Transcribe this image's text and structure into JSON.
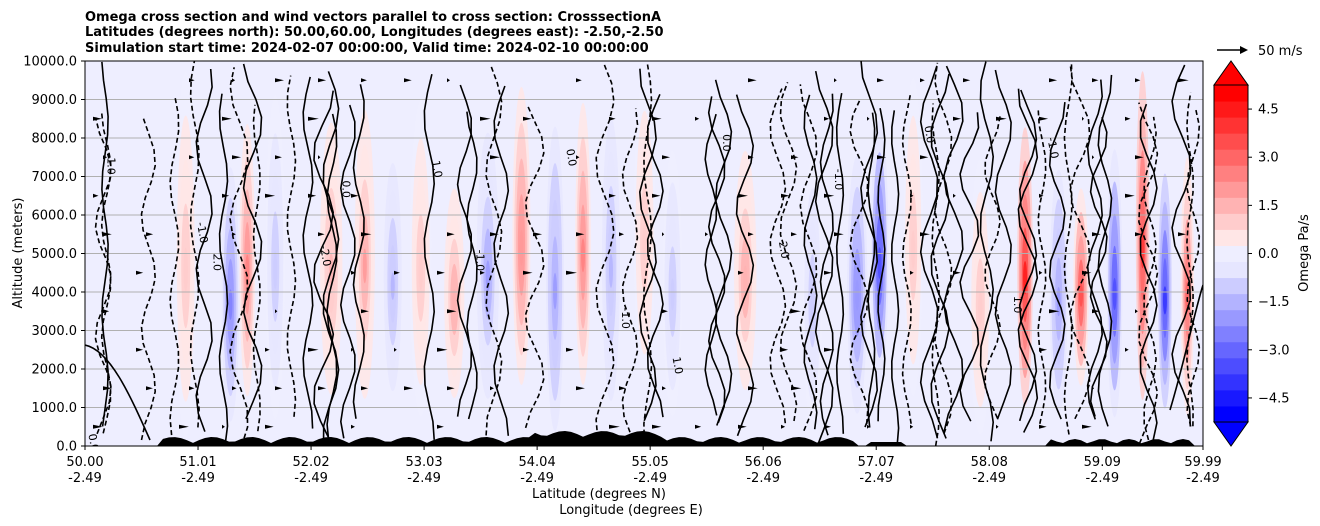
{
  "chart_data": {
    "type": "heatmap",
    "title_lines": [
      "Omega cross section and wind vectors parallel to cross section: CrosssectionA",
      "Latitudes (degrees north): 50.00,60.00, Longitudes (degrees east): -2.50,-2.50",
      "Simulation start time: 2024-02-07 00:00:00, Valid time: 2024-02-10 00:00:00"
    ],
    "xlabel_lat": "Latitude (degrees N)",
    "xlabel_lon": "Longitude (degrees E)",
    "ylabel": "Altitude (meters)",
    "ylim": [
      0,
      10000
    ],
    "xlim": [
      50.0,
      59.99
    ],
    "y_ticks": [
      "0.0",
      "1000.0",
      "2000.0",
      "3000.0",
      "4000.0",
      "5000.0",
      "6000.0",
      "7000.0",
      "8000.0",
      "9000.0",
      "10000.0"
    ],
    "y_tick_values": [
      0,
      1000,
      2000,
      3000,
      4000,
      5000,
      6000,
      7000,
      8000,
      9000,
      10000
    ],
    "x_ticks_lat": [
      "50.00",
      "51.01",
      "52.02",
      "53.03",
      "54.04",
      "55.05",
      "56.06",
      "57.07",
      "58.08",
      "59.09",
      "59.99"
    ],
    "x_tick_values": [
      50.0,
      51.01,
      52.02,
      53.03,
      54.04,
      55.05,
      56.06,
      57.07,
      58.08,
      59.09,
      59.99
    ],
    "x_ticks_lon": [
      "-2.49",
      "-2.49",
      "-2.49",
      "-2.49",
      "-2.49",
      "-2.49",
      "-2.49",
      "-2.49",
      "-2.49",
      "-2.49",
      "-2.49"
    ],
    "colorbar": {
      "label": "Omega Pa/s",
      "range": [
        -5.25,
        5.25
      ],
      "ticks": [
        "4.5",
        "3.0",
        "1.5",
        "0.0",
        "−1.5",
        "−3.0",
        "−4.5"
      ],
      "tick_values": [
        4.5,
        3.0,
        1.5,
        0.0,
        -1.5,
        -3.0,
        -4.5
      ],
      "extend": "both",
      "colormap": "bwr"
    },
    "quiver_key_label": "50 m/s",
    "contour_labels": [
      "0.0",
      "1.0",
      "-1.0",
      "2.0",
      "-2.0",
      "0.0",
      "1.0",
      "-1.0",
      "0.0",
      "-1.0",
      "1.0",
      "0.0",
      "2.0",
      "-1.0",
      "0.0",
      "1.0",
      "-1.0"
    ],
    "omega_bands": [
      {
        "lat": 50.9,
        "w": 0.1,
        "amp": 1.2
      },
      {
        "lat": 51.3,
        "w": 0.08,
        "amp": -2.5
      },
      {
        "lat": 51.45,
        "w": 0.07,
        "amp": 2.6
      },
      {
        "lat": 51.7,
        "w": 0.09,
        "amp": -1.2
      },
      {
        "lat": 52.2,
        "w": 0.1,
        "amp": 1.3
      },
      {
        "lat": 52.5,
        "w": 0.09,
        "amp": 1.8
      },
      {
        "lat": 52.75,
        "w": 0.08,
        "amp": -1.4
      },
      {
        "lat": 53.0,
        "w": 0.1,
        "amp": 1.0
      },
      {
        "lat": 53.3,
        "w": 0.09,
        "amp": 1.6
      },
      {
        "lat": 53.6,
        "w": 0.1,
        "amp": -1.8
      },
      {
        "lat": 53.9,
        "w": 0.08,
        "amp": 2.2
      },
      {
        "lat": 54.2,
        "w": 0.08,
        "amp": -2.0
      },
      {
        "lat": 54.45,
        "w": 0.07,
        "amp": 2.4
      },
      {
        "lat": 54.7,
        "w": 0.08,
        "amp": -1.5
      },
      {
        "lat": 55.0,
        "w": 0.1,
        "amp": 1.2
      },
      {
        "lat": 55.25,
        "w": 0.09,
        "amp": -1.0
      },
      {
        "lat": 55.9,
        "w": 0.1,
        "amp": 1.6
      },
      {
        "lat": 56.5,
        "w": 0.09,
        "amp": -1.2
      },
      {
        "lat": 56.9,
        "w": 0.09,
        "amp": -2.2
      },
      {
        "lat": 57.1,
        "w": 0.08,
        "amp": -3.5
      },
      {
        "lat": 57.4,
        "w": 0.09,
        "amp": 1.0
      },
      {
        "lat": 58.0,
        "w": 0.1,
        "amp": 1.2
      },
      {
        "lat": 58.4,
        "w": 0.07,
        "amp": 4.5
      },
      {
        "lat": 58.7,
        "w": 0.08,
        "amp": -2.0
      },
      {
        "lat": 58.9,
        "w": 0.07,
        "amp": 3.5
      },
      {
        "lat": 59.2,
        "w": 0.07,
        "amp": -3.5
      },
      {
        "lat": 59.45,
        "w": 0.06,
        "amp": 4.0
      },
      {
        "lat": 59.65,
        "w": 0.06,
        "amp": -4.0
      },
      {
        "lat": 59.85,
        "w": 0.06,
        "amp": 3.0
      }
    ]
  }
}
